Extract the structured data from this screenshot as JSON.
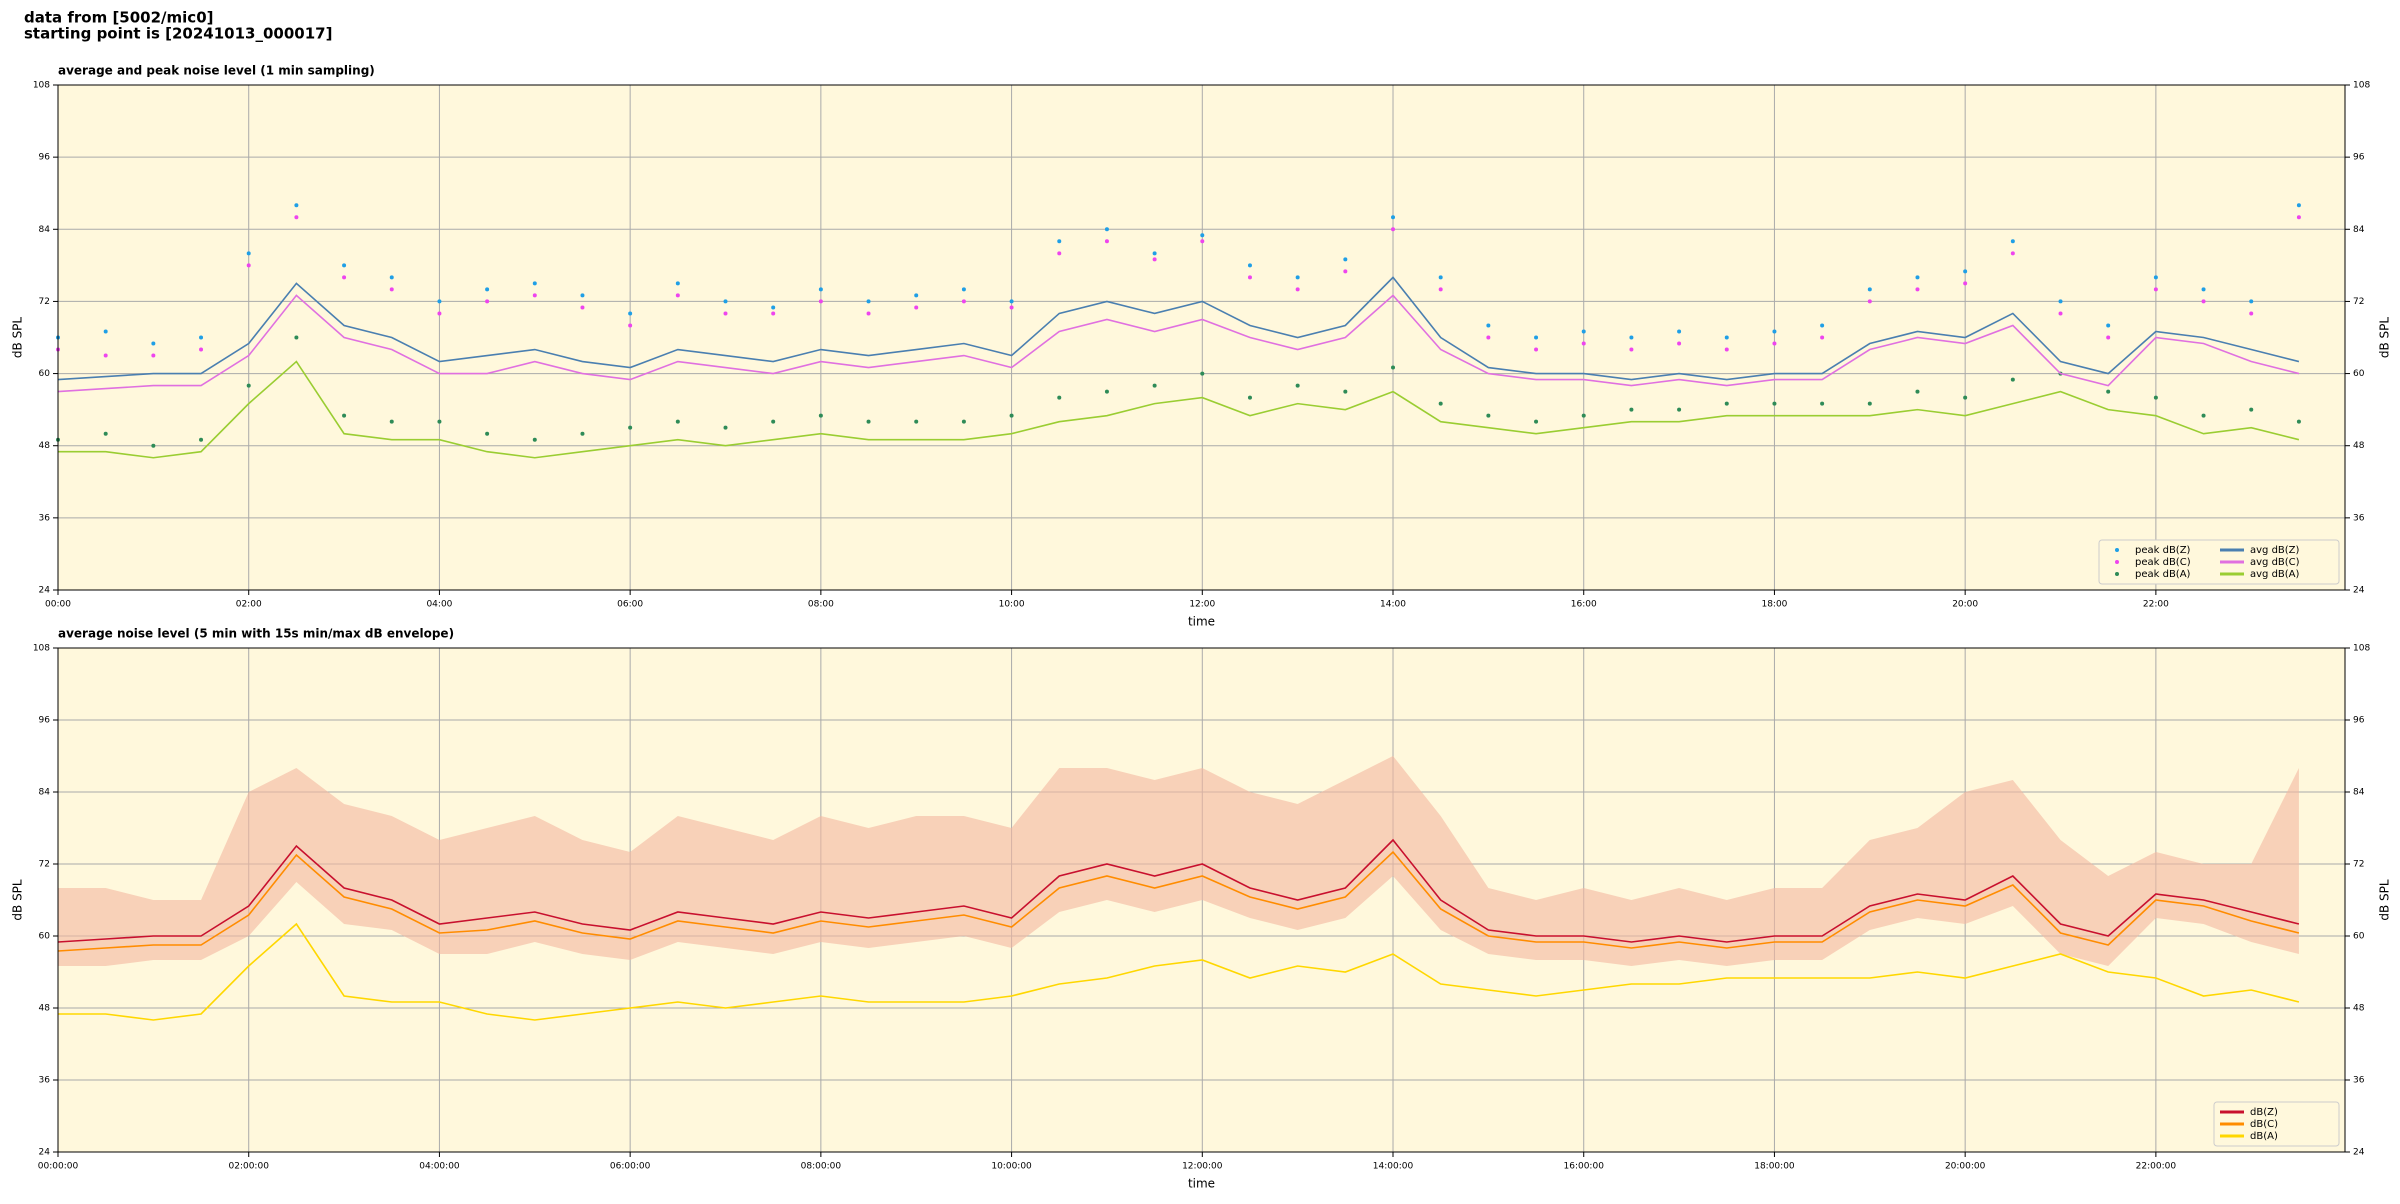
{
  "header": {
    "line1": "data from [5002/mic0]",
    "line2": "starting point is [20241013_000017]"
  },
  "chart_data": [
    {
      "type": "line",
      "title": "average and peak noise level (1 min sampling)",
      "xlabel": "time",
      "ylabel": "dB SPL",
      "x": [
        "00:00",
        "00:30",
        "01:00",
        "01:30",
        "02:00",
        "02:30",
        "03:00",
        "03:30",
        "04:00",
        "04:30",
        "05:00",
        "05:30",
        "06:00",
        "06:30",
        "07:00",
        "07:30",
        "08:00",
        "08:30",
        "09:00",
        "09:30",
        "10:00",
        "10:30",
        "11:00",
        "11:30",
        "12:00",
        "12:30",
        "13:00",
        "13:30",
        "14:00",
        "14:30",
        "15:00",
        "15:30",
        "16:00",
        "16:30",
        "17:00",
        "17:30",
        "18:00",
        "18:30",
        "19:00",
        "19:30",
        "20:00",
        "20:30",
        "21:00",
        "21:30",
        "22:00",
        "22:30",
        "23:00",
        "23:30"
      ],
      "xlim": [
        "00:00",
        "23:59"
      ],
      "xticks": [
        "00:00",
        "02:00",
        "04:00",
        "06:00",
        "08:00",
        "10:00",
        "12:00",
        "14:00",
        "16:00",
        "18:00",
        "20:00",
        "22:00"
      ],
      "ylim": [
        24,
        108
      ],
      "yticks": [
        24,
        36,
        48,
        60,
        72,
        84,
        96,
        108
      ],
      "grid": true,
      "legend": "lower right",
      "background": "#fff8dc",
      "series": [
        {
          "name": "peak dB(Z)",
          "mark": "dot",
          "color": "#1f9fe6",
          "values": [
            66,
            67,
            65,
            66,
            80,
            88,
            78,
            76,
            72,
            74,
            75,
            73,
            70,
            75,
            72,
            71,
            74,
            72,
            73,
            74,
            72,
            82,
            84,
            80,
            83,
            78,
            76,
            79,
            86,
            76,
            68,
            66,
            67,
            66,
            67,
            66,
            67,
            68,
            74,
            76,
            77,
            82,
            72,
            68,
            76,
            74,
            72,
            88
          ]
        },
        {
          "name": "peak dB(C)",
          "mark": "dot",
          "color": "#ee44ee",
          "values": [
            64,
            63,
            63,
            64,
            78,
            86,
            76,
            74,
            70,
            72,
            73,
            71,
            68,
            73,
            70,
            70,
            72,
            70,
            71,
            72,
            71,
            80,
            82,
            79,
            82,
            76,
            74,
            77,
            84,
            74,
            66,
            64,
            65,
            64,
            65,
            64,
            65,
            66,
            72,
            74,
            75,
            80,
            70,
            66,
            74,
            72,
            70,
            86
          ]
        },
        {
          "name": "peak dB(A)",
          "mark": "dot",
          "color": "#2e8b57",
          "values": [
            49,
            50,
            48,
            49,
            58,
            66,
            53,
            52,
            52,
            50,
            49,
            50,
            51,
            52,
            51,
            52,
            53,
            52,
            52,
            52,
            53,
            56,
            57,
            58,
            60,
            56,
            58,
            57,
            61,
            55,
            53,
            52,
            53,
            54,
            54,
            55,
            55,
            55,
            55,
            57,
            56,
            59,
            60,
            57,
            56,
            53,
            54,
            52
          ]
        },
        {
          "name": "avg dB(Z)",
          "mark": "line",
          "color": "#4a7fb0",
          "values": [
            59,
            59.5,
            60,
            60,
            65,
            75,
            68,
            66,
            62,
            63,
            64,
            62,
            61,
            64,
            63,
            62,
            64,
            63,
            64,
            65,
            63,
            70,
            72,
            70,
            72,
            68,
            66,
            68,
            76,
            66,
            61,
            60,
            60,
            59,
            60,
            59,
            60,
            60,
            65,
            67,
            66,
            70,
            62,
            60,
            67,
            66,
            64,
            62
          ]
        },
        {
          "name": "avg dB(C)",
          "mark": "line",
          "color": "#e070e0",
          "values": [
            57,
            57.5,
            58,
            58,
            63,
            73,
            66,
            64,
            60,
            60,
            62,
            60,
            59,
            62,
            61,
            60,
            62,
            61,
            62,
            63,
            61,
            67,
            69,
            67,
            69,
            66,
            64,
            66,
            73,
            64,
            60,
            59,
            59,
            58,
            59,
            58,
            59,
            59,
            64,
            66,
            65,
            68,
            60,
            58,
            66,
            65,
            62,
            60
          ]
        },
        {
          "name": "avg dB(A)",
          "mark": "line",
          "color": "#9acd32",
          "values": [
            47,
            47,
            46,
            47,
            55,
            62,
            50,
            49,
            49,
            47,
            46,
            47,
            48,
            49,
            48,
            49,
            50,
            49,
            49,
            49,
            50,
            52,
            53,
            55,
            56,
            53,
            55,
            54,
            57,
            52,
            51,
            50,
            51,
            52,
            52,
            53,
            53,
            53,
            53,
            54,
            53,
            55,
            57,
            54,
            53,
            50,
            51,
            49
          ]
        }
      ]
    },
    {
      "type": "line",
      "title": "average noise level (5 min with 15s min/max dB envelope)",
      "xlabel": "time",
      "ylabel": "dB SPL",
      "x": [
        "00:00",
        "00:30",
        "01:00",
        "01:30",
        "02:00",
        "02:30",
        "03:00",
        "03:30",
        "04:00",
        "04:30",
        "05:00",
        "05:30",
        "06:00",
        "06:30",
        "07:00",
        "07:30",
        "08:00",
        "08:30",
        "09:00",
        "09:30",
        "10:00",
        "10:30",
        "11:00",
        "11:30",
        "12:00",
        "12:30",
        "13:00",
        "13:30",
        "14:00",
        "14:30",
        "15:00",
        "15:30",
        "16:00",
        "16:30",
        "17:00",
        "17:30",
        "18:00",
        "18:30",
        "19:00",
        "19:30",
        "20:00",
        "20:30",
        "21:00",
        "21:30",
        "22:00",
        "22:30",
        "23:00",
        "23:30"
      ],
      "xlim": [
        "00:00:00",
        "23:59:00"
      ],
      "xticks": [
        "00:00:00",
        "02:00:00",
        "04:00:00",
        "06:00:00",
        "08:00:00",
        "10:00:00",
        "12:00:00",
        "14:00:00",
        "16:00:00",
        "18:00:00",
        "20:00:00",
        "22:00:00"
      ],
      "ylim": [
        24,
        108
      ],
      "yticks": [
        24,
        36,
        48,
        60,
        72,
        84,
        96,
        108
      ],
      "grid": true,
      "legend": "lower right",
      "background": "#fff8dc",
      "envelope": {
        "color": "#f4b8a0",
        "min": [
          55,
          55,
          56,
          56,
          60,
          69,
          62,
          61,
          57,
          57,
          59,
          57,
          56,
          59,
          58,
          57,
          59,
          58,
          59,
          60,
          58,
          64,
          66,
          64,
          66,
          63,
          61,
          63,
          70,
          61,
          57,
          56,
          56,
          55,
          56,
          55,
          56,
          56,
          61,
          63,
          62,
          65,
          57,
          55,
          63,
          62,
          59,
          57
        ],
        "max": [
          68,
          68,
          66,
          66,
          84,
          88,
          82,
          80,
          76,
          78,
          80,
          76,
          74,
          80,
          78,
          76,
          80,
          78,
          80,
          80,
          78,
          88,
          88,
          86,
          88,
          84,
          82,
          86,
          90,
          80,
          68,
          66,
          68,
          66,
          68,
          66,
          68,
          68,
          76,
          78,
          84,
          86,
          76,
          70,
          74,
          72,
          72,
          88
        ]
      },
      "series": [
        {
          "name": "dB(Z)",
          "mark": "line",
          "color": "#c8102e",
          "values": [
            59,
            59.5,
            60,
            60,
            65,
            75,
            68,
            66,
            62,
            63,
            64,
            62,
            61,
            64,
            63,
            62,
            64,
            63,
            64,
            65,
            63,
            70,
            72,
            70,
            72,
            68,
            66,
            68,
            76,
            66,
            61,
            60,
            60,
            59,
            60,
            59,
            60,
            60,
            65,
            67,
            66,
            70,
            62,
            60,
            67,
            66,
            64,
            62
          ]
        },
        {
          "name": "dB(C)",
          "mark": "line",
          "color": "#ff8c00",
          "values": [
            57.5,
            58,
            58.5,
            58.5,
            63.5,
            73.5,
            66.5,
            64.5,
            60.5,
            61,
            62.5,
            60.5,
            59.5,
            62.5,
            61.5,
            60.5,
            62.5,
            61.5,
            62.5,
            63.5,
            61.5,
            68,
            70,
            68,
            70,
            66.5,
            64.5,
            66.5,
            74,
            64.5,
            60,
            59,
            59,
            58,
            59,
            58,
            59,
            59,
            64,
            66,
            65,
            68.5,
            60.5,
            58.5,
            66,
            65,
            62.5,
            60.5
          ]
        },
        {
          "name": "dB(A)",
          "mark": "line",
          "color": "#ffd700",
          "values": [
            47,
            47,
            46,
            47,
            55,
            62,
            50,
            49,
            49,
            47,
            46,
            47,
            48,
            49,
            48,
            49,
            50,
            49,
            49,
            49,
            50,
            52,
            53,
            55,
            56,
            53,
            55,
            54,
            57,
            52,
            51,
            50,
            51,
            52,
            52,
            53,
            53,
            53,
            53,
            54,
            53,
            55,
            57,
            54,
            53,
            50,
            51,
            49
          ]
        }
      ]
    }
  ]
}
